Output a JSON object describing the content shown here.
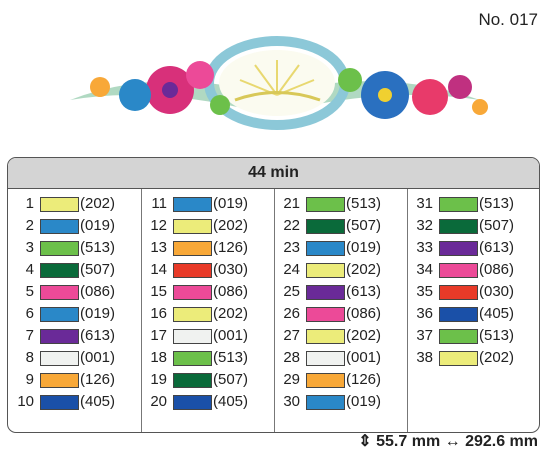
{
  "page_number": "No. 017",
  "table": {
    "header": "44 min",
    "entries": [
      {
        "number": "1",
        "color": "#ecec7a",
        "code": "(202)"
      },
      {
        "number": "2",
        "color": "#2a88c8",
        "code": "(019)"
      },
      {
        "number": "3",
        "color": "#6cc04a",
        "code": "(513)"
      },
      {
        "number": "4",
        "color": "#0a6a3a",
        "code": "(507)"
      },
      {
        "number": "5",
        "color": "#ec4a98",
        "code": "(086)"
      },
      {
        "number": "6",
        "color": "#2a88c8",
        "code": "(019)"
      },
      {
        "number": "7",
        "color": "#6a2a98",
        "code": "(613)"
      },
      {
        "number": "8",
        "color": "#f0f2f0",
        "code": "(001)"
      },
      {
        "number": "9",
        "color": "#f8a838",
        "code": "(126)"
      },
      {
        "number": "10",
        "color": "#1a50a8",
        "code": "(405)"
      },
      {
        "number": "11",
        "color": "#2a88c8",
        "code": "(019)"
      },
      {
        "number": "12",
        "color": "#ecec7a",
        "code": "(202)"
      },
      {
        "number": "13",
        "color": "#f8a838",
        "code": "(126)"
      },
      {
        "number": "14",
        "color": "#e83a28",
        "code": "(030)"
      },
      {
        "number": "15",
        "color": "#ec4a98",
        "code": "(086)"
      },
      {
        "number": "16",
        "color": "#ecec7a",
        "code": "(202)"
      },
      {
        "number": "17",
        "color": "#f0f2f0",
        "code": "(001)"
      },
      {
        "number": "18",
        "color": "#6cc04a",
        "code": "(513)"
      },
      {
        "number": "19",
        "color": "#0a6a3a",
        "code": "(507)"
      },
      {
        "number": "20",
        "color": "#1a50a8",
        "code": "(405)"
      },
      {
        "number": "21",
        "color": "#6cc04a",
        "code": "(513)"
      },
      {
        "number": "22",
        "color": "#0a6a3a",
        "code": "(507)"
      },
      {
        "number": "23",
        "color": "#2a88c8",
        "code": "(019)"
      },
      {
        "number": "24",
        "color": "#ecec7a",
        "code": "(202)"
      },
      {
        "number": "25",
        "color": "#6a2a98",
        "code": "(613)"
      },
      {
        "number": "26",
        "color": "#ec4a98",
        "code": "(086)"
      },
      {
        "number": "27",
        "color": "#ecec7a",
        "code": "(202)"
      },
      {
        "number": "28",
        "color": "#f0f2f0",
        "code": "(001)"
      },
      {
        "number": "29",
        "color": "#f8a838",
        "code": "(126)"
      },
      {
        "number": "30",
        "color": "#2a88c8",
        "code": "(019)"
      },
      {
        "number": "31",
        "color": "#6cc04a",
        "code": "(513)"
      },
      {
        "number": "32",
        "color": "#0a6a3a",
        "code": "(507)"
      },
      {
        "number": "33",
        "color": "#6a2a98",
        "code": "(613)"
      },
      {
        "number": "34",
        "color": "#ec4a98",
        "code": "(086)"
      },
      {
        "number": "35",
        "color": "#e83a28",
        "code": "(030)"
      },
      {
        "number": "36",
        "color": "#1a50a8",
        "code": "(405)"
      },
      {
        "number": "37",
        "color": "#6cc04a",
        "code": "(513)"
      },
      {
        "number": "38",
        "color": "#ecec7a",
        "code": "(202)"
      }
    ]
  },
  "footer": "⇕ 55.7 mm ↔ 292.6 mm"
}
